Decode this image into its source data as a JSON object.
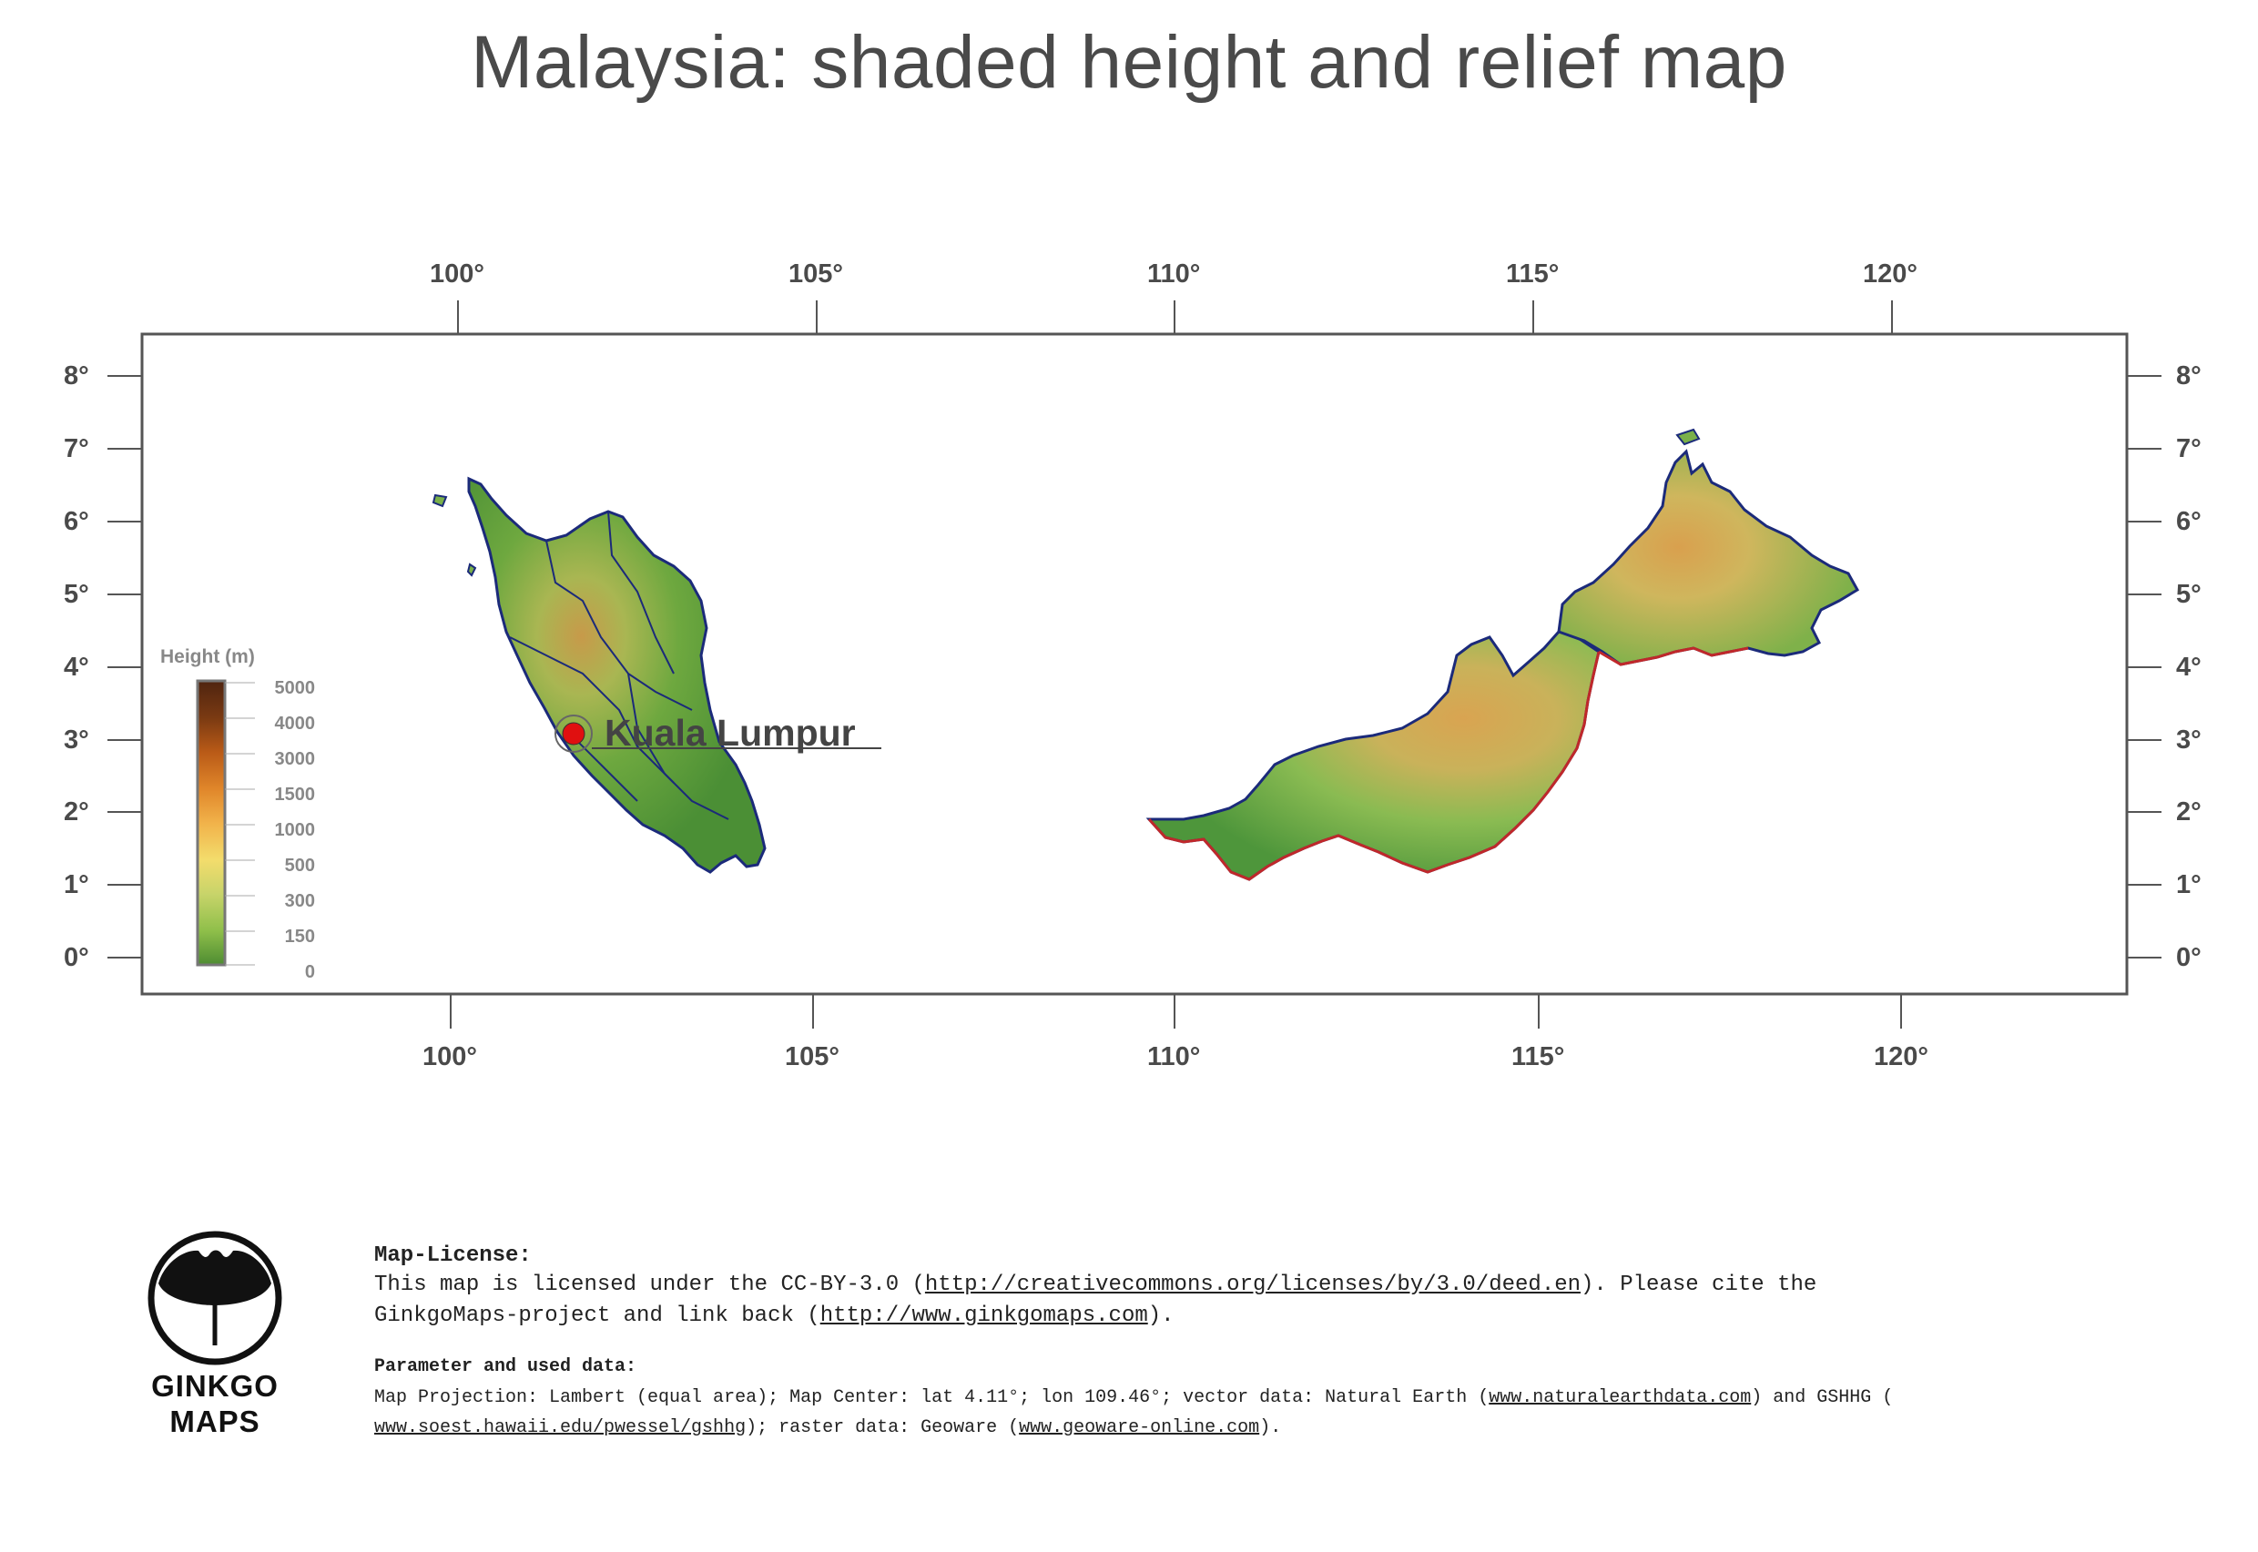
{
  "title": "Malaysia: shaded height and relief map",
  "axes": {
    "lon_labels": [
      "100°",
      "105°",
      "110°",
      "115°",
      "120°"
    ],
    "lat_labels": [
      "8°",
      "7°",
      "6°",
      "5°",
      "4°",
      "3°",
      "2°",
      "1°",
      "0°"
    ]
  },
  "city": {
    "name": "Kuala Lumpur",
    "lat": 3.14,
    "lon": 101.69,
    "marker_color": "#e01010"
  },
  "legend": {
    "title": "Height (m)",
    "ticks": [
      "5000",
      "4000",
      "3000",
      "1500",
      "1000",
      "500",
      "300",
      "150",
      "0"
    ],
    "colors": [
      "#4f2410",
      "#7a3a12",
      "#b95a17",
      "#e0862a",
      "#f1b24a",
      "#f3dc6c",
      "#c8d46a",
      "#8fbf4a",
      "#4e8c32"
    ]
  },
  "colors": {
    "land_low": "#4f9a3a",
    "land_mid": "#9cc65a",
    "land_high": "#d49c4a",
    "coast": "#1b2a7a",
    "border": "#c0282a"
  },
  "license": {
    "heading": "Map-License:",
    "line1_pre": "This map is licensed under the CC-BY-3.0 (",
    "line1_link": "http://creativecommons.org/licenses/by/3.0/deed.en",
    "line1_post": ").  Please cite the",
    "line2_pre": "GinkgoMaps-project and link back (",
    "line2_link": "http://www.ginkgomaps.com",
    "line2_post": ").",
    "param_heading": "Parameter and used data:",
    "p1_pre": "Map Projection: Lambert (equal area); Map Center: lat 4.11°; lon 109.46°; vector data: Natural Earth (",
    "p1_link": "www.naturalearthdata.com",
    "p1_post": ") and GSHHG (",
    "p2_link": "www.soest.hawaii.edu/pwessel/gshhg",
    "p2_mid": "); raster data: Geoware (",
    "p2_link2": "www.geoware-online.com",
    "p2_post": ")."
  },
  "logo": {
    "line1": "GINKGO",
    "line2": "MAPS"
  }
}
